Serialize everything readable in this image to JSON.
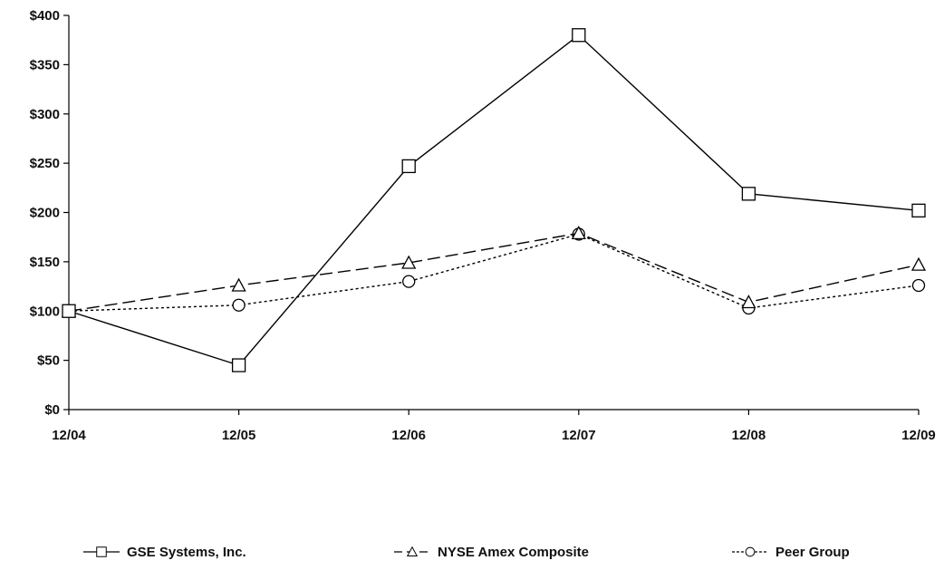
{
  "chart_data": {
    "type": "line",
    "title": "",
    "xlabel": "",
    "ylabel": "",
    "categories": [
      "12/04",
      "12/05",
      "12/06",
      "12/07",
      "12/08",
      "12/09"
    ],
    "yticks": [
      "$0",
      "$50",
      "$100",
      "$150",
      "$200",
      "$250",
      "$300",
      "$350",
      "$400"
    ],
    "ylim": [
      0,
      400
    ],
    "grid": false,
    "legend_position": "bottom",
    "series": [
      {
        "name": "GSE Systems, Inc.",
        "values": [
          100,
          45,
          247,
          380,
          219,
          202
        ],
        "marker": "square",
        "line_style": "solid",
        "color": "#000000"
      },
      {
        "name": "NYSE Amex Composite",
        "values": [
          100,
          126,
          149,
          179,
          109,
          147
        ],
        "marker": "triangle",
        "line_style": "dashed",
        "color": "#000000"
      },
      {
        "name": "Peer Group",
        "values": [
          100,
          106,
          130,
          178,
          103,
          126
        ],
        "marker": "circle",
        "line_style": "dotted",
        "color": "#000000"
      }
    ]
  }
}
